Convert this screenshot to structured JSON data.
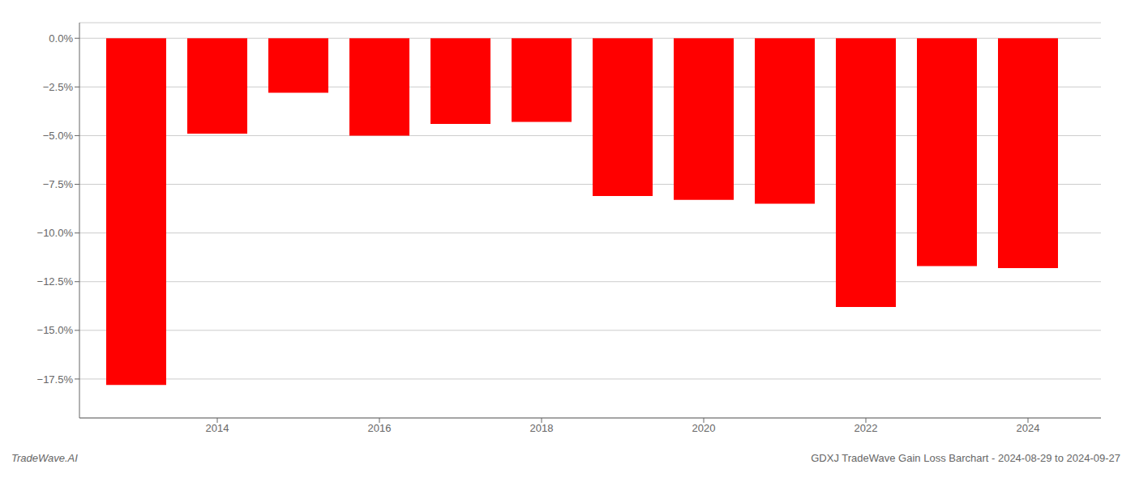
{
  "chart_data": {
    "type": "bar",
    "x": [
      2013,
      2014,
      2015,
      2016,
      2017,
      2018,
      2019,
      2020,
      2021,
      2022,
      2023,
      2024
    ],
    "values": [
      -17.8,
      -4.9,
      -2.8,
      -5.0,
      -4.4,
      -4.3,
      -8.1,
      -8.3,
      -8.5,
      -13.8,
      -11.7,
      -11.8
    ],
    "color": "#ff0000",
    "xlim": [
      2012.3,
      2024.9
    ],
    "xticks": [
      2014,
      2016,
      2018,
      2020,
      2022,
      2024
    ],
    "ylim": [
      -19.5,
      0.8
    ],
    "yticks": [
      {
        "value": 0.0,
        "label": "0.0%"
      },
      {
        "value": -2.5,
        "label": "−2.5%"
      },
      {
        "value": -5.0,
        "label": "−5.0%"
      },
      {
        "value": -7.5,
        "label": "−7.5%"
      },
      {
        "value": -10.0,
        "label": "−10.0%"
      },
      {
        "value": -12.5,
        "label": "−12.5%"
      },
      {
        "value": -15.0,
        "label": "−15.0%"
      },
      {
        "value": -17.5,
        "label": "−17.5%"
      }
    ],
    "grid": true,
    "annotations": [
      "TradeWave.AI",
      "GDXJ TradeWave Gain Loss Barchart - 2024-08-29 to 2024-09-27"
    ]
  }
}
